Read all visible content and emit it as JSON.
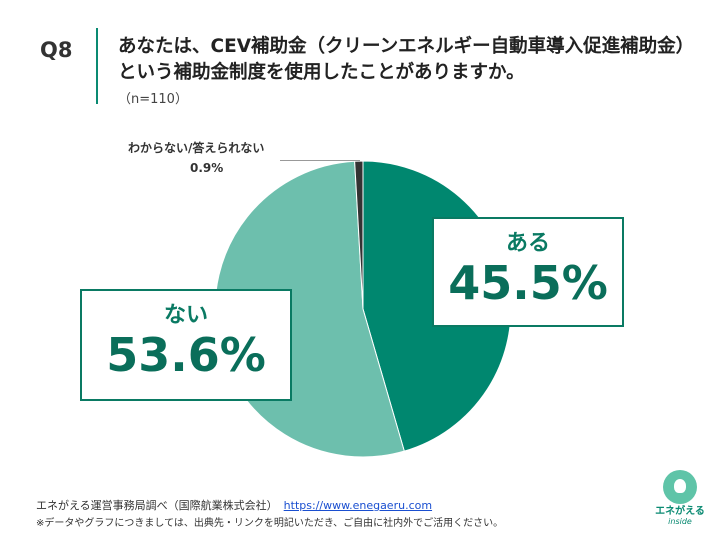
{
  "question": {
    "number": "Q8",
    "text": "あなたは、CEV補助金（クリーンエネルギー自動車導入促進補助金）という補助金制度を使用したことがありますか。",
    "sample": "（n=110）"
  },
  "chart_data": {
    "type": "pie",
    "title": "",
    "slices": [
      {
        "label": "ある",
        "value": 45.5,
        "value_label": "45.5%",
        "color": "#00876f"
      },
      {
        "label": "ない",
        "value": 53.6,
        "value_label": "53.6%",
        "color": "#6dbfad"
      },
      {
        "label": "わからない/答えられない",
        "value": 0.9,
        "value_label": "0.9%",
        "color": "#333333"
      }
    ],
    "start_angle_deg": 0,
    "direction": "clockwise"
  },
  "footer": {
    "source": "エネがえる運営事務局調べ（国際航業株式会社）",
    "url": "https://www.enegaeru.com",
    "note": "※データやグラフにつきましては、出典先・リンクを明記いただき、ご自由に社内外でご活用ください。"
  },
  "logo": {
    "name": "エネがえる",
    "sub": "inside"
  }
}
